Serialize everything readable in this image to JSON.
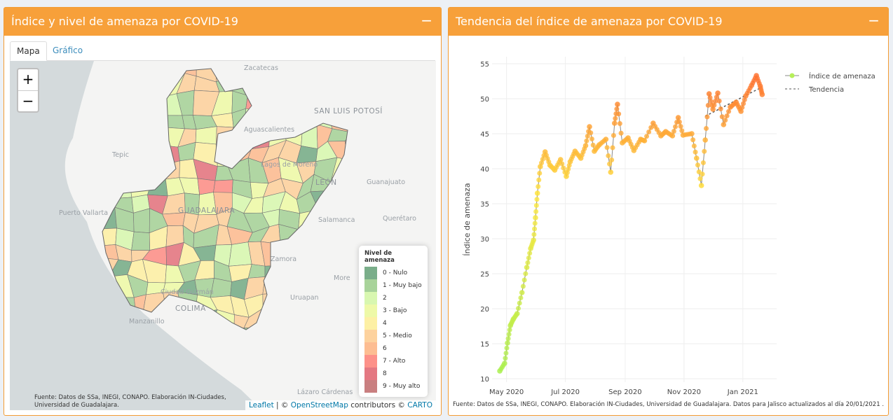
{
  "left_panel": {
    "title": "Índice y nivel de amenaza por COVID-19",
    "minimize": "−",
    "tabs": [
      "Mapa",
      "Gráfico"
    ],
    "zoom_in": "+",
    "zoom_out": "−",
    "cities": [
      {
        "name": "Zacatecas",
        "big": false
      },
      {
        "name": "SAN LUIS POTOSÍ",
        "big": true
      },
      {
        "name": "Aguascalientes",
        "big": false
      },
      {
        "name": "Tepic",
        "big": false
      },
      {
        "name": "Lagos de Moreno",
        "big": false
      },
      {
        "name": "LEÓN",
        "big": true
      },
      {
        "name": "Guanajuato",
        "big": false
      },
      {
        "name": "Puerto Vallarta",
        "big": false
      },
      {
        "name": "GUADALAJARA",
        "big": true
      },
      {
        "name": "Salamanca",
        "big": false
      },
      {
        "name": "Querétaro",
        "big": false
      },
      {
        "name": "Zamora",
        "big": false
      },
      {
        "name": "More",
        "big": false
      },
      {
        "name": "Ciudad Guzmán",
        "big": false
      },
      {
        "name": "Uruapan",
        "big": false
      },
      {
        "name": "COLIMA",
        "big": true
      },
      {
        "name": "Manzanillo",
        "big": false
      },
      {
        "name": "Lázaro Cárdenas",
        "big": false
      }
    ],
    "legend": {
      "title": "Nivel de amenaza",
      "items": [
        {
          "label": "0 - Nulo",
          "color": "#7aae8a"
        },
        {
          "label": "1 - Muy bajo",
          "color": "#a8d39a"
        },
        {
          "label": "2",
          "color": "#d8f7b0"
        },
        {
          "label": "3 - Bajo",
          "color": "#eef9a8"
        },
        {
          "label": "4",
          "color": "#fdf0a5"
        },
        {
          "label": "5 - Medio",
          "color": "#fdd29e"
        },
        {
          "label": "6",
          "color": "#fdbd92"
        },
        {
          "label": "7 - Alto",
          "color": "#fd9189"
        },
        {
          "label": "8",
          "color": "#e47882"
        },
        {
          "label": "9 - Muy alto",
          "color": "#c97f80"
        }
      ]
    },
    "source": "Fuente: Datos de SSa, INEGI, CONAPO. Elaboración IN-Ciudades, Universidad de Guadalajara.",
    "attribution": {
      "leaflet": "Leaflet",
      "sep": " | © ",
      "osm": "OpenStreetMap",
      "contrib": " contributors © ",
      "carto": "CARTO"
    }
  },
  "right_panel": {
    "title": "Tendencia del índice de amenaza por COVID-19",
    "minimize": "−",
    "source": "Fuente: Datos de SSa, INEGI, CONAPO. Elaboración IN-Ciudades, Universidad de Guadalajara. Datos para Jalisco actualizados al día 20/01/2021 ."
  },
  "chart_data": {
    "type": "line",
    "ylabel": "Índice de amenaza",
    "ylim": [
      9.5,
      56
    ],
    "xlim": [
      "2020-04-16",
      "2021-02-05"
    ],
    "yticks": [
      10,
      15,
      20,
      25,
      30,
      35,
      40,
      45,
      50,
      55
    ],
    "xticks": [
      {
        "date": "2020-05-01",
        "label": "May 2020"
      },
      {
        "date": "2020-07-01",
        "label": "Jul 2020"
      },
      {
        "date": "2020-09-01",
        "label": "Sep 2020"
      },
      {
        "date": "2020-11-01",
        "label": "Nov 2020"
      },
      {
        "date": "2021-01-01",
        "label": "Jan 2021"
      }
    ],
    "grid": true,
    "legend_position": "top-right",
    "series": [
      {
        "name": "Índice de amenaza",
        "x": [
          "2020-04-24",
          "2020-04-29",
          "2020-05-02",
          "2020-05-05",
          "2020-05-08",
          "2020-05-12",
          "2020-05-17",
          "2020-05-22",
          "2020-05-26",
          "2020-05-29",
          "2020-05-31",
          "2020-06-02",
          "2020-06-05",
          "2020-06-10",
          "2020-06-15",
          "2020-06-20",
          "2020-06-26",
          "2020-07-02",
          "2020-07-06",
          "2020-07-11",
          "2020-07-17",
          "2020-07-22",
          "2020-07-26",
          "2020-07-31",
          "2020-08-05",
          "2020-08-12",
          "2020-08-17",
          "2020-08-21",
          "2020-08-24",
          "2020-08-29",
          "2020-09-04",
          "2020-09-10",
          "2020-09-17",
          "2020-09-21",
          "2020-09-30",
          "2020-10-08",
          "2020-10-13",
          "2020-10-20",
          "2020-10-26",
          "2020-10-31",
          "2020-11-09",
          "2020-11-14",
          "2020-11-19",
          "2020-11-23",
          "2020-11-27",
          "2020-12-01",
          "2020-12-06",
          "2020-12-12",
          "2020-12-19",
          "2020-12-25",
          "2020-12-30",
          "2021-01-04",
          "2021-01-10",
          "2021-01-15",
          "2021-01-19",
          "2021-01-21"
        ],
        "values": [
          11.1,
          12.2,
          15.1,
          17.6,
          18.5,
          19.3,
          22.3,
          25.9,
          28.6,
          29.8,
          33,
          36.5,
          40.3,
          42.4,
          40.5,
          39.8,
          41.3,
          38.9,
          41,
          42.5,
          41.5,
          43.3,
          46,
          42.5,
          43.4,
          44.2,
          39.5,
          46.5,
          49.2,
          43.7,
          44.4,
          42.6,
          44.2,
          44,
          46.5,
          44.7,
          45.3,
          44.7,
          47.3,
          44.8,
          45,
          41.5,
          37.6,
          44.1,
          50.7,
          48.5,
          50.8,
          46.3,
          48.8,
          49.5,
          48.2,
          50.4,
          51.9,
          53.3,
          51.8,
          50.6
        ],
        "color": "#888888"
      },
      {
        "name": "Tendencia",
        "x": [
          "2020-11-23",
          "2021-01-20"
        ],
        "values": [
          47.5,
          51.6
        ],
        "color": "#555555",
        "dash": "dot"
      }
    ]
  }
}
